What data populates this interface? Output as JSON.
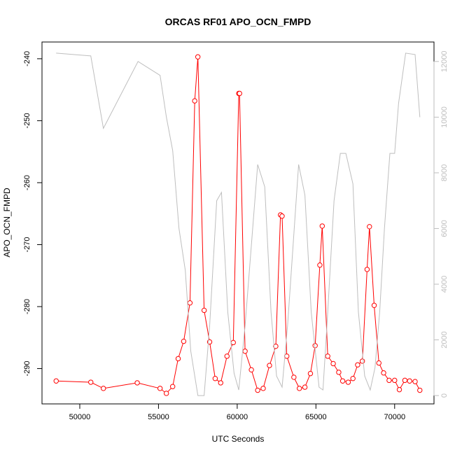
{
  "chart_data": {
    "type": "line",
    "title": "ORCAS RF01 APO_OCN_FMPD",
    "xlabel": "UTC Seconds",
    "ylabel": "APO_OCN_FMPD",
    "xlim": [
      47600,
      72500
    ],
    "ylim": [
      -295.7,
      -237.3
    ],
    "y2lim": [
      -300,
      12700
    ],
    "x_ticks": [
      50000,
      55000,
      60000,
      65000,
      70000
    ],
    "y_ticks": [
      -290,
      -280,
      -270,
      -260,
      -250,
      -240
    ],
    "y2_ticks": [
      0,
      2000,
      4000,
      6000,
      8000,
      10000,
      12000
    ],
    "grid": false,
    "series": [
      {
        "color": "#ff0000",
        "style": "line-with-open-circles",
        "x": [
          48500,
          50700,
          51500,
          53650,
          55100,
          55500,
          55900,
          56250,
          56600,
          57000,
          57300,
          57500,
          57900,
          58250,
          58600,
          58950,
          59350,
          59750,
          60100,
          60150,
          60500,
          60900,
          61300,
          61650,
          62050,
          62450,
          62750,
          62850,
          63150,
          63600,
          63950,
          64300,
          64650,
          64950,
          65250,
          65400,
          65750,
          66100,
          66450,
          66700,
          67050,
          67350,
          67650,
          67950,
          68250,
          68400,
          68700,
          69000,
          69300,
          69650,
          70000,
          70300,
          70650,
          70950,
          71300,
          71600
        ],
        "values": [
          -292.0,
          -292.2,
          -293.2,
          -292.3,
          -293.2,
          -294.0,
          -292.9,
          -288.4,
          -285.6,
          -279.4,
          -246.8,
          -239.7,
          -280.6,
          -285.7,
          -291.6,
          -292.3,
          -288.0,
          -285.8,
          -245.6,
          -245.6,
          -287.2,
          -290.2,
          -293.5,
          -293.2,
          -289.5,
          -286.4,
          -265.2,
          -265.4,
          -288.0,
          -291.4,
          -293.2,
          -293.0,
          -290.8,
          -286.3,
          -273.3,
          -267.0,
          -288.0,
          -289.2,
          -290.6,
          -292.0,
          -292.2,
          -291.6,
          -289.4,
          -288.8,
          -274.0,
          -267.1,
          -279.8,
          -289.1,
          -290.7,
          -291.9,
          -291.9,
          -293.4,
          -291.9,
          -292.0,
          -292.1,
          -293.5
        ]
      },
      {
        "color": "#bebebe",
        "style": "line",
        "axis": "right",
        "x": [
          48500,
          50700,
          51500,
          53700,
          55100,
          55500,
          55900,
          56300,
          56700,
          57050,
          57500,
          57900,
          58250,
          58700,
          59000,
          59400,
          59800,
          60100,
          60500,
          61300,
          61750,
          62150,
          62500,
          62850,
          63200,
          63600,
          63900,
          64300,
          64700,
          65200,
          65450,
          65750,
          66150,
          66550,
          66900,
          67350,
          67700,
          68100,
          68450,
          68750,
          69050,
          69350,
          69700,
          70000,
          70250,
          70700,
          71300,
          71600
        ],
        "values": [
          12300,
          12200,
          9600,
          12000,
          11500,
          10000,
          8800,
          6000,
          4500,
          1600,
          0,
          0,
          2500,
          7000,
          7300,
          3000,
          800,
          200,
          2500,
          8300,
          7500,
          3000,
          700,
          300,
          2500,
          5800,
          8300,
          7200,
          3000,
          300,
          200,
          3000,
          7000,
          8700,
          8700,
          7600,
          3000,
          700,
          200,
          1000,
          3000,
          6000,
          8700,
          8700,
          10500,
          12300,
          12250,
          10000
        ]
      }
    ]
  }
}
